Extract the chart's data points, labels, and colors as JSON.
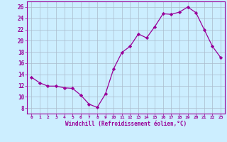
{
  "x": [
    0,
    1,
    2,
    3,
    4,
    5,
    6,
    7,
    8,
    9,
    10,
    11,
    12,
    13,
    14,
    15,
    16,
    17,
    18,
    19,
    20,
    21,
    22,
    23
  ],
  "y": [
    13.5,
    12.5,
    11.9,
    11.9,
    11.6,
    11.5,
    10.3,
    8.7,
    8.1,
    10.5,
    15.0,
    17.9,
    19.0,
    21.2,
    20.5,
    22.5,
    24.8,
    24.7,
    25.1,
    26.0,
    25.0,
    22.0,
    19.0,
    17.0
  ],
  "line_color": "#990099",
  "marker": "D",
  "marker_size": 2.2,
  "bg_color": "#cceeff",
  "grid_color": "#aabbcc",
  "xlabel": "Windchill (Refroidissement éolien,°C)",
  "xlabel_color": "#990099",
  "tick_color": "#990099",
  "ylim": [
    7,
    27
  ],
  "xlim": [
    -0.5,
    23.5
  ],
  "yticks": [
    8,
    10,
    12,
    14,
    16,
    18,
    20,
    22,
    24,
    26
  ],
  "xticks": [
    0,
    1,
    2,
    3,
    4,
    5,
    6,
    7,
    8,
    9,
    10,
    11,
    12,
    13,
    14,
    15,
    16,
    17,
    18,
    19,
    20,
    21,
    22,
    23
  ]
}
